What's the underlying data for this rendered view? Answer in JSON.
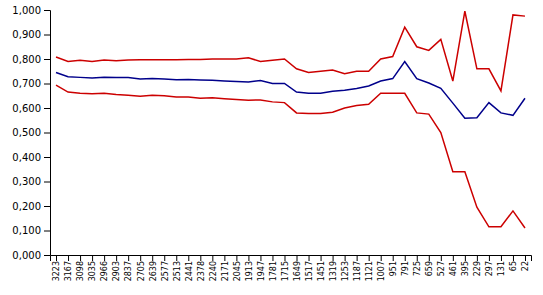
{
  "chart_data": {
    "type": "line",
    "categories": [
      "3223",
      "3167",
      "3098",
      "3035",
      "2966",
      "2903",
      "2837",
      "2705",
      "2639",
      "2577",
      "2513",
      "2441",
      "2378",
      "2240",
      "2171",
      "2045",
      "1913",
      "1947",
      "1781",
      "1715",
      "1649",
      "1517",
      "1451",
      "1319",
      "1253",
      "1187",
      "1121",
      "1007",
      "951",
      "791",
      "725",
      "659",
      "527",
      "461",
      "395",
      "229",
      "297",
      "131",
      "65",
      "22"
    ],
    "series": [
      {
        "color": "#00008B",
        "values": [
          0.745,
          0.728,
          0.725,
          0.722,
          0.726,
          0.724,
          0.724,
          0.718,
          0.72,
          0.718,
          0.715,
          0.716,
          0.714,
          0.713,
          0.71,
          0.708,
          0.706,
          0.712,
          0.7,
          0.7,
          0.665,
          0.66,
          0.66,
          0.668,
          0.672,
          0.68,
          0.69,
          0.71,
          0.72,
          0.79,
          0.72,
          0.702,
          0.68,
          0.62,
          0.558,
          0.56,
          0.622,
          0.58,
          0.57,
          0.64
        ]
      },
      {
        "color": "#CC0000",
        "values": [
          0.808,
          0.79,
          0.795,
          0.79,
          0.796,
          0.793,
          0.796,
          0.797,
          0.797,
          0.797,
          0.797,
          0.798,
          0.798,
          0.8,
          0.8,
          0.8,
          0.805,
          0.79,
          0.795,
          0.8,
          0.76,
          0.745,
          0.75,
          0.755,
          0.74,
          0.75,
          0.75,
          0.8,
          0.81,
          0.93,
          0.85,
          0.835,
          0.88,
          0.71,
          0.995,
          0.76,
          0.76,
          0.67,
          0.98,
          0.975
        ]
      },
      {
        "color": "#CC0000",
        "values": [
          0.693,
          0.665,
          0.66,
          0.658,
          0.66,
          0.655,
          0.652,
          0.648,
          0.652,
          0.65,
          0.645,
          0.645,
          0.64,
          0.642,
          0.638,
          0.635,
          0.632,
          0.633,
          0.625,
          0.622,
          0.58,
          0.578,
          0.578,
          0.583,
          0.6,
          0.61,
          0.615,
          0.66,
          0.66,
          0.66,
          0.58,
          0.575,
          0.5,
          0.34,
          0.34,
          0.195,
          0.115,
          0.115,
          0.18,
          0.11
        ]
      }
    ],
    "ylim": [
      0.0,
      1.0
    ],
    "yticks": [
      {
        "value": 0.0,
        "label": "0,000"
      },
      {
        "value": 0.1,
        "label": "0,100"
      },
      {
        "value": 0.2,
        "label": "0,200"
      },
      {
        "value": 0.3,
        "label": "0,300"
      },
      {
        "value": 0.4,
        "label": "0,400"
      },
      {
        "value": 0.5,
        "label": "0,500"
      },
      {
        "value": 0.6,
        "label": "0,600"
      },
      {
        "value": 0.7,
        "label": "0,700"
      },
      {
        "value": 0.8,
        "label": "0,800"
      },
      {
        "value": 0.9,
        "label": "0,900"
      },
      {
        "value": 1.0,
        "label": "1,000"
      }
    ],
    "grid": false
  }
}
